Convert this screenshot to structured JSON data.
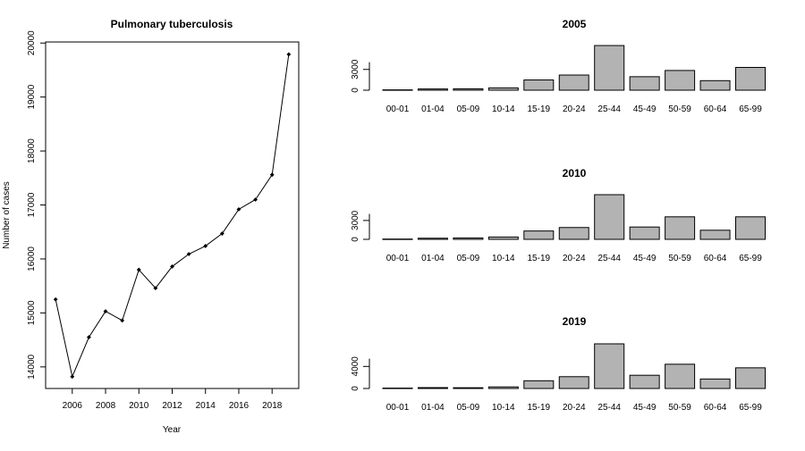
{
  "chart_data": [
    {
      "type": "line",
      "title": "Pulmonary tuberculosis",
      "xlabel": "Year",
      "ylabel": "Number of cases",
      "xlim": [
        2004.4,
        2019.6
      ],
      "ylim": [
        13600,
        20020
      ],
      "x_ticks": [
        2006,
        2008,
        2010,
        2012,
        2014,
        2016,
        2018
      ],
      "y_ticks": [
        14000,
        15000,
        16000,
        17000,
        18000,
        19000,
        20000
      ],
      "x": [
        2005,
        2006,
        2007,
        2008,
        2009,
        2010,
        2011,
        2012,
        2013,
        2014,
        2015,
        2016,
        2017,
        2018,
        2019
      ],
      "values": [
        15250,
        13820,
        14550,
        15030,
        14860,
        15800,
        15460,
        15860,
        16090,
        16240,
        16470,
        16920,
        17100,
        17560,
        19790
      ],
      "grid": false
    },
    {
      "type": "bar",
      "title": "2005",
      "categories": [
        "00-01",
        "01-04",
        "05-09",
        "10-14",
        "15-19",
        "20-24",
        "25-44",
        "45-49",
        "50-59",
        "60-64",
        "65-99"
      ],
      "values": [
        50,
        180,
        200,
        330,
        1480,
        2190,
        6450,
        1950,
        2850,
        1380,
        3290
      ],
      "y_ticks": [
        0,
        3000
      ],
      "ylim": [
        0,
        6450
      ]
    },
    {
      "type": "bar",
      "title": "2010",
      "categories": [
        "00-01",
        "01-04",
        "05-09",
        "10-14",
        "15-19",
        "20-24",
        "25-44",
        "45-49",
        "50-59",
        "60-64",
        "65-99"
      ],
      "values": [
        50,
        180,
        220,
        370,
        1330,
        1880,
        7100,
        1960,
        3580,
        1450,
        3580
      ],
      "y_ticks": [
        0,
        3000
      ],
      "ylim": [
        0,
        7100
      ]
    },
    {
      "type": "bar",
      "title": "2019",
      "categories": [
        "00-01",
        "01-04",
        "05-09",
        "10-14",
        "15-19",
        "20-24",
        "25-44",
        "45-49",
        "50-59",
        "60-64",
        "65-99"
      ],
      "values": [
        70,
        160,
        140,
        290,
        1400,
        2140,
        8100,
        2400,
        4400,
        1720,
        3750
      ],
      "y_ticks": [
        0,
        4000
      ],
      "ylim": [
        0,
        8100
      ]
    }
  ]
}
